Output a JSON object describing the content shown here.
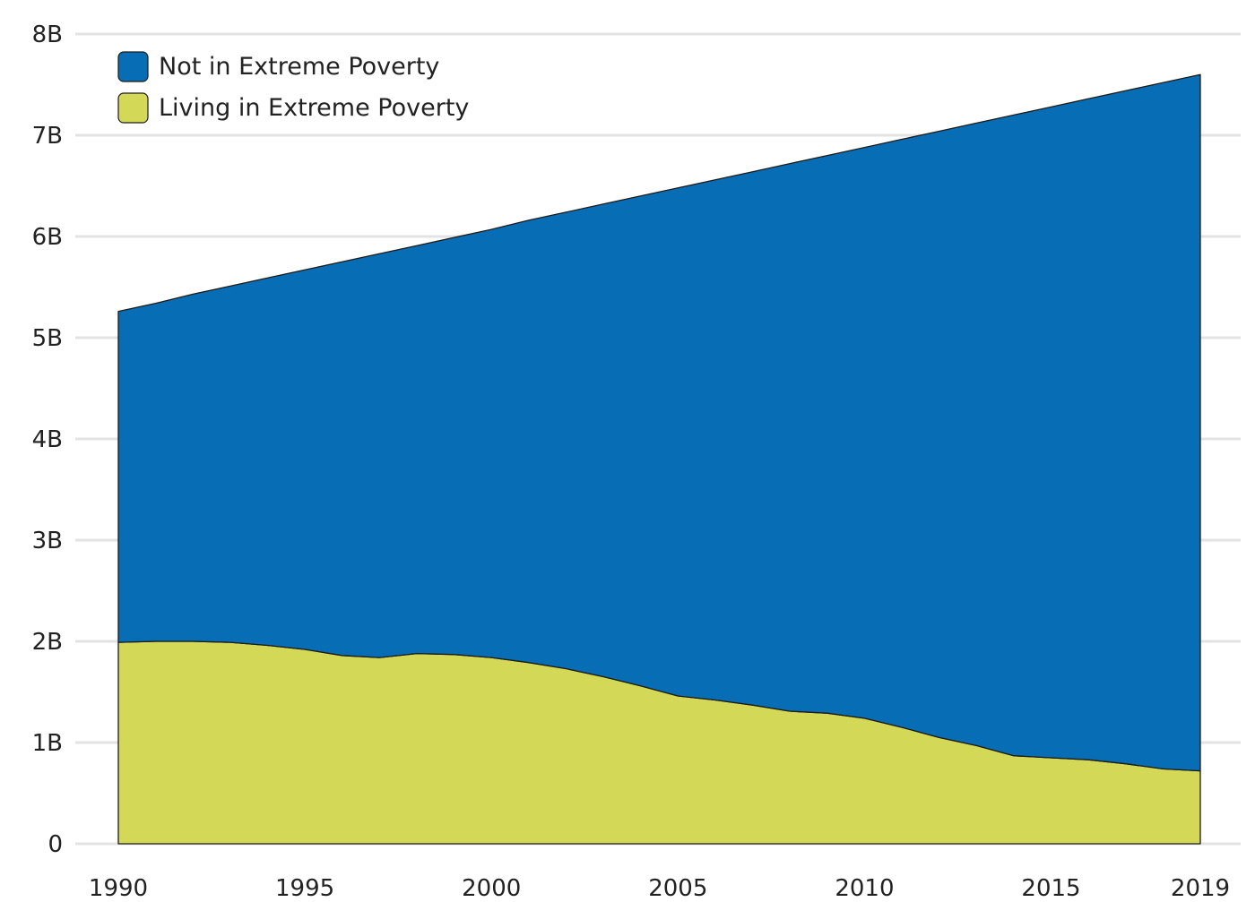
{
  "chart_data": {
    "type": "area",
    "stacked": true,
    "title": "",
    "xlabel": "",
    "ylabel": "",
    "xlim": [
      1990,
      2019
    ],
    "ylim": [
      0,
      8000000000
    ],
    "grid": true,
    "legend_position": "top-left",
    "x_ticks": [
      1990,
      1995,
      2000,
      2005,
      2010,
      2015,
      2019
    ],
    "x_tick_labels": [
      "1990",
      "1995",
      "2000",
      "2005",
      "2010",
      "2015",
      "2019"
    ],
    "y_ticks": [
      0,
      1000000000,
      2000000000,
      3000000000,
      4000000000,
      5000000000,
      6000000000,
      7000000000,
      8000000000
    ],
    "y_tick_labels": [
      "0",
      "1B",
      "2B",
      "3B",
      "4B",
      "5B",
      "6B",
      "7B",
      "8B"
    ],
    "x": [
      1990,
      1991,
      1992,
      1993,
      1994,
      1995,
      1996,
      1997,
      1998,
      1999,
      2000,
      2001,
      2002,
      2003,
      2004,
      2005,
      2006,
      2007,
      2008,
      2009,
      2010,
      2011,
      2012,
      2013,
      2014,
      2015,
      2016,
      2017,
      2018,
      2019
    ],
    "series": [
      {
        "name": "Living in Extreme Poverty",
        "color": "#d3d956",
        "values": [
          1990000000,
          2000000000,
          2000000000,
          1990000000,
          1960000000,
          1920000000,
          1860000000,
          1840000000,
          1880000000,
          1870000000,
          1840000000,
          1790000000,
          1730000000,
          1650000000,
          1560000000,
          1460000000,
          1420000000,
          1370000000,
          1310000000,
          1290000000,
          1240000000,
          1150000000,
          1050000000,
          970000000,
          870000000,
          850000000,
          830000000,
          790000000,
          740000000,
          720000000
        ]
      },
      {
        "name": "Not in Extreme Poverty",
        "color": "#076db5",
        "values": [
          3270000000,
          3340000000,
          3430000000,
          3520000000,
          3630000000,
          3750000000,
          3890000000,
          3990000000,
          4030000000,
          4120000000,
          4230000000,
          4370000000,
          4510000000,
          4670000000,
          4840000000,
          5020000000,
          5140000000,
          5270000000,
          5410000000,
          5510000000,
          5640000000,
          5810000000,
          5990000000,
          6150000000,
          6330000000,
          6430000000,
          6530000000,
          6650000000,
          6780000000,
          6880000000
        ]
      }
    ]
  }
}
